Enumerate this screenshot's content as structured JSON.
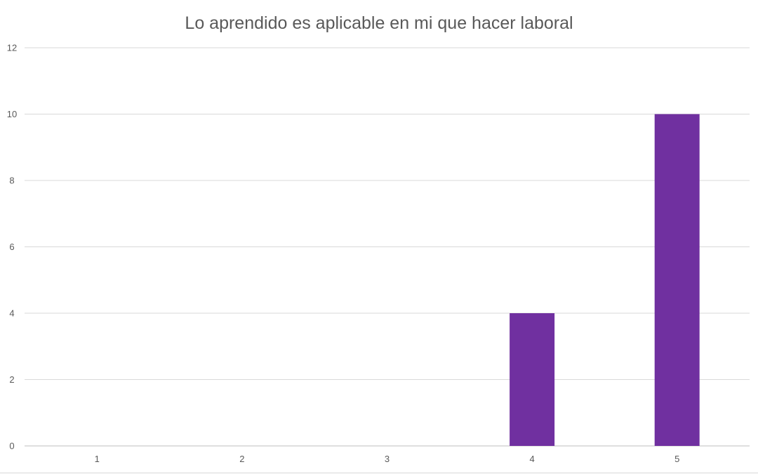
{
  "chart_data": {
    "type": "bar",
    "title": "Lo aprendido es aplicable en mi que hacer laboral",
    "xlabel": "",
    "ylabel": "",
    "categories": [
      "1",
      "2",
      "3",
      "4",
      "5"
    ],
    "values": [
      0,
      0,
      0,
      4,
      10
    ],
    "ylim": [
      0,
      12
    ],
    "yticks": [
      "0",
      "2",
      "4",
      "6",
      "8",
      "10",
      "12"
    ],
    "grid": true,
    "legend": "none",
    "bar_color": "#7030a0"
  }
}
